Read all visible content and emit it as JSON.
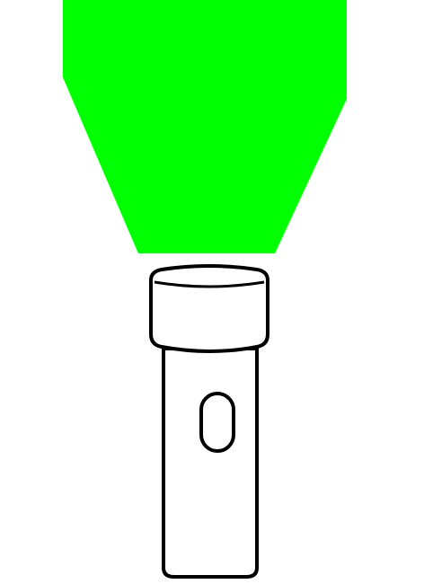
{
  "colors": {
    "background": "#ffffff",
    "beam": "#00ff00",
    "outline": "#000000",
    "body_fill": "#ffffff"
  },
  "illustration": {
    "icon": "flashlight-icon",
    "beam_icon": "light-beam-icon",
    "switch_icon": "power-switch-icon"
  }
}
